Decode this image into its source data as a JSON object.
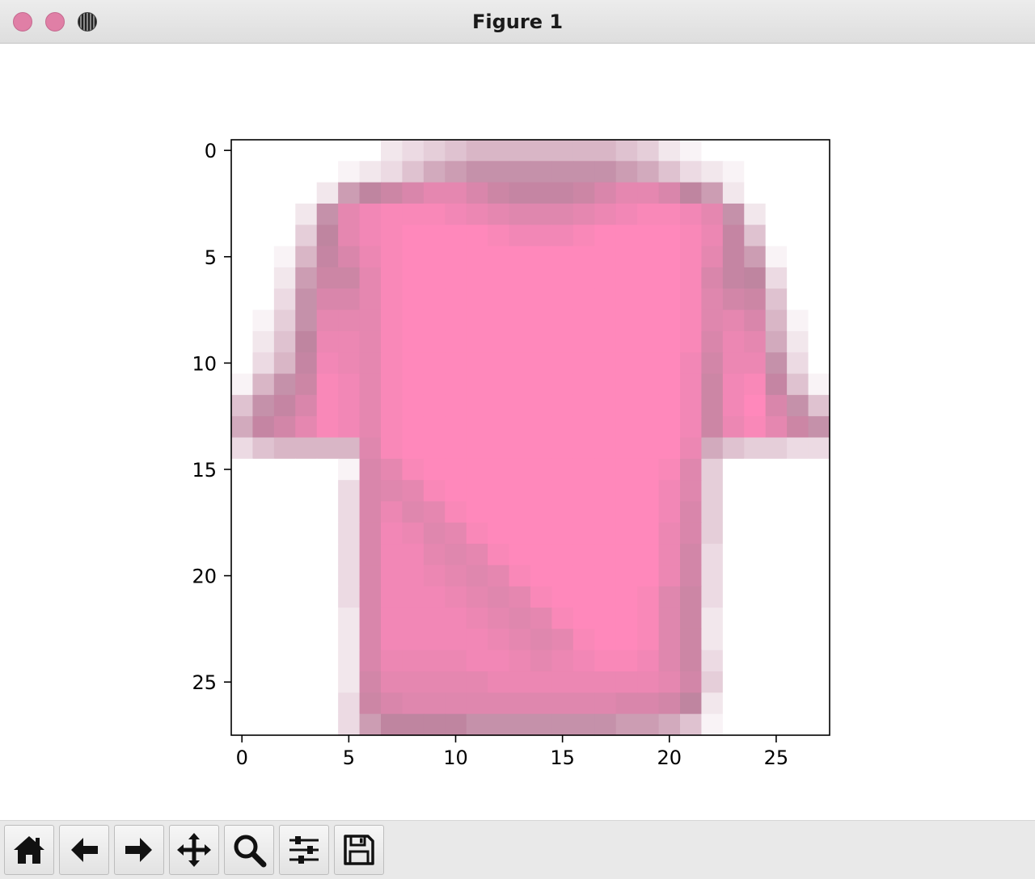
{
  "window": {
    "title": "Figure 1"
  },
  "toolbar": {
    "buttons": [
      {
        "name": "home-button",
        "icon": "home-icon"
      },
      {
        "name": "back-button",
        "icon": "arrow-left-icon"
      },
      {
        "name": "forward-button",
        "icon": "arrow-right-icon"
      },
      {
        "name": "pan-button",
        "icon": "move-icon"
      },
      {
        "name": "zoom-button",
        "icon": "magnifier-icon"
      },
      {
        "name": "configure-subplots-button",
        "icon": "sliders-icon"
      },
      {
        "name": "save-button",
        "icon": "floppy-disk-icon"
      }
    ]
  },
  "chart_data": {
    "type": "heatmap",
    "title": "",
    "xlabel": "",
    "ylabel": "",
    "xlim": [
      -0.5,
      27.5
    ],
    "ylim": [
      27.5,
      -0.5
    ],
    "x_ticks": [
      0,
      5,
      10,
      15,
      20,
      25
    ],
    "y_ticks": [
      0,
      5,
      10,
      15,
      20,
      25
    ],
    "x_tick_labels": [
      "0",
      "5",
      "10",
      "15",
      "20",
      "25"
    ],
    "y_tick_labels": [
      "0",
      "5",
      "10",
      "15",
      "20",
      "25"
    ],
    "grid": false,
    "colormap": {
      "low": "#ffffff",
      "mid": "#bf85a0",
      "high": "#ff88bb"
    },
    "values": [
      [
        0,
        0,
        0,
        0,
        0,
        0,
        0,
        10,
        15,
        20,
        25,
        30,
        30,
        30,
        30,
        30,
        30,
        30,
        25,
        20,
        10,
        5,
        0,
        0,
        0,
        0,
        0,
        0
      ],
      [
        0,
        0,
        0,
        0,
        0,
        5,
        10,
        15,
        25,
        35,
        40,
        45,
        45,
        45,
        45,
        45,
        45,
        45,
        40,
        35,
        25,
        15,
        10,
        5,
        0,
        0,
        0,
        0
      ],
      [
        0,
        0,
        0,
        0,
        10,
        40,
        50,
        60,
        70,
        80,
        80,
        70,
        60,
        55,
        55,
        55,
        60,
        70,
        80,
        80,
        70,
        50,
        40,
        10,
        0,
        0,
        0,
        0
      ],
      [
        0,
        0,
        0,
        10,
        45,
        80,
        90,
        95,
        95,
        95,
        90,
        85,
        80,
        75,
        75,
        75,
        80,
        85,
        90,
        95,
        95,
        90,
        80,
        45,
        10,
        0,
        0,
        0
      ],
      [
        0,
        0,
        0,
        20,
        50,
        80,
        90,
        95,
        100,
        100,
        100,
        100,
        95,
        90,
        90,
        90,
        95,
        100,
        100,
        100,
        100,
        95,
        85,
        55,
        25,
        0,
        0,
        0
      ],
      [
        0,
        0,
        5,
        30,
        55,
        70,
        85,
        95,
        100,
        100,
        100,
        100,
        100,
        100,
        100,
        100,
        100,
        100,
        100,
        100,
        100,
        95,
        80,
        55,
        40,
        5,
        0,
        0
      ],
      [
        0,
        0,
        10,
        40,
        60,
        60,
        80,
        95,
        100,
        100,
        100,
        100,
        100,
        100,
        100,
        100,
        100,
        100,
        100,
        100,
        100,
        95,
        70,
        55,
        50,
        15,
        0,
        0
      ],
      [
        0,
        0,
        15,
        45,
        70,
        70,
        80,
        95,
        100,
        100,
        100,
        100,
        100,
        100,
        100,
        100,
        100,
        100,
        100,
        100,
        100,
        95,
        75,
        65,
        60,
        25,
        0,
        0
      ],
      [
        0,
        5,
        20,
        45,
        80,
        80,
        80,
        95,
        100,
        100,
        100,
        100,
        100,
        100,
        100,
        100,
        100,
        100,
        100,
        100,
        100,
        95,
        75,
        80,
        70,
        30,
        5,
        0
      ],
      [
        0,
        10,
        25,
        50,
        85,
        85,
        80,
        95,
        100,
        100,
        100,
        100,
        100,
        100,
        100,
        100,
        100,
        100,
        100,
        100,
        100,
        95,
        70,
        85,
        80,
        35,
        10,
        0
      ],
      [
        0,
        15,
        30,
        55,
        90,
        85,
        80,
        95,
        100,
        100,
        100,
        100,
        100,
        100,
        100,
        100,
        100,
        100,
        100,
        100,
        100,
        90,
        65,
        85,
        85,
        45,
        15,
        0
      ],
      [
        5,
        30,
        45,
        60,
        95,
        90,
        80,
        95,
        100,
        100,
        100,
        100,
        100,
        100,
        100,
        100,
        100,
        100,
        100,
        100,
        100,
        90,
        60,
        90,
        95,
        55,
        25,
        5
      ],
      [
        25,
        45,
        55,
        70,
        95,
        90,
        80,
        95,
        100,
        100,
        100,
        100,
        100,
        100,
        100,
        100,
        100,
        100,
        100,
        100,
        100,
        90,
        60,
        90,
        100,
        70,
        45,
        25
      ],
      [
        35,
        55,
        65,
        80,
        95,
        90,
        80,
        95,
        100,
        100,
        100,
        100,
        100,
        100,
        100,
        100,
        100,
        100,
        100,
        100,
        100,
        90,
        60,
        85,
        95,
        80,
        60,
        45
      ],
      [
        15,
        25,
        30,
        30,
        30,
        30,
        75,
        95,
        100,
        100,
        100,
        100,
        100,
        100,
        100,
        100,
        100,
        100,
        100,
        100,
        100,
        85,
        35,
        25,
        20,
        20,
        15,
        15
      ],
      [
        0,
        0,
        0,
        0,
        0,
        5,
        70,
        80,
        95,
        100,
        100,
        100,
        100,
        100,
        100,
        100,
        100,
        100,
        100,
        100,
        95,
        75,
        20,
        0,
        0,
        0,
        0,
        0
      ],
      [
        0,
        0,
        0,
        0,
        0,
        15,
        70,
        75,
        80,
        95,
        100,
        100,
        100,
        100,
        100,
        100,
        100,
        100,
        100,
        100,
        90,
        75,
        20,
        0,
        0,
        0,
        0,
        0
      ],
      [
        0,
        0,
        0,
        0,
        0,
        15,
        70,
        85,
        75,
        80,
        95,
        100,
        100,
        100,
        100,
        100,
        100,
        100,
        100,
        100,
        90,
        70,
        20,
        0,
        0,
        0,
        0,
        0
      ],
      [
        0,
        0,
        0,
        0,
        0,
        15,
        70,
        90,
        85,
        75,
        80,
        95,
        100,
        100,
        100,
        100,
        100,
        100,
        100,
        100,
        85,
        70,
        20,
        0,
        0,
        0,
        0,
        0
      ],
      [
        0,
        0,
        0,
        0,
        0,
        15,
        70,
        90,
        90,
        80,
        75,
        80,
        95,
        100,
        100,
        100,
        100,
        100,
        100,
        100,
        85,
        65,
        15,
        0,
        0,
        0,
        0,
        0
      ],
      [
        0,
        0,
        0,
        0,
        0,
        15,
        70,
        90,
        90,
        85,
        80,
        75,
        80,
        95,
        100,
        100,
        100,
        100,
        100,
        100,
        85,
        65,
        15,
        0,
        0,
        0,
        0,
        0
      ],
      [
        0,
        0,
        0,
        0,
        0,
        15,
        70,
        90,
        90,
        90,
        85,
        80,
        75,
        80,
        95,
        100,
        100,
        100,
        100,
        95,
        75,
        60,
        15,
        0,
        0,
        0,
        0,
        0
      ],
      [
        0,
        0,
        0,
        0,
        0,
        10,
        70,
        90,
        90,
        90,
        90,
        85,
        80,
        75,
        80,
        95,
        100,
        100,
        100,
        95,
        75,
        60,
        10,
        0,
        0,
        0,
        0,
        0
      ],
      [
        0,
        0,
        0,
        0,
        0,
        10,
        70,
        90,
        90,
        90,
        90,
        90,
        85,
        80,
        75,
        80,
        95,
        100,
        100,
        95,
        75,
        60,
        10,
        0,
        0,
        0,
        0,
        0
      ],
      [
        0,
        0,
        0,
        0,
        0,
        10,
        70,
        85,
        85,
        85,
        85,
        90,
        90,
        85,
        80,
        85,
        90,
        95,
        95,
        90,
        75,
        60,
        15,
        0,
        0,
        0,
        0,
        0
      ],
      [
        0,
        0,
        0,
        0,
        0,
        10,
        65,
        80,
        80,
        80,
        80,
        80,
        85,
        85,
        85,
        85,
        85,
        85,
        85,
        85,
        80,
        65,
        20,
        0,
        0,
        0,
        0,
        0
      ],
      [
        0,
        0,
        0,
        0,
        0,
        15,
        60,
        70,
        75,
        75,
        75,
        75,
        75,
        75,
        75,
        75,
        75,
        75,
        70,
        70,
        65,
        50,
        10,
        0,
        0,
        0,
        0,
        0
      ],
      [
        0,
        0,
        0,
        0,
        0,
        15,
        40,
        50,
        50,
        50,
        50,
        45,
        45,
        45,
        45,
        45,
        45,
        45,
        40,
        40,
        35,
        25,
        5,
        0,
        0,
        0,
        0,
        0
      ]
    ]
  }
}
